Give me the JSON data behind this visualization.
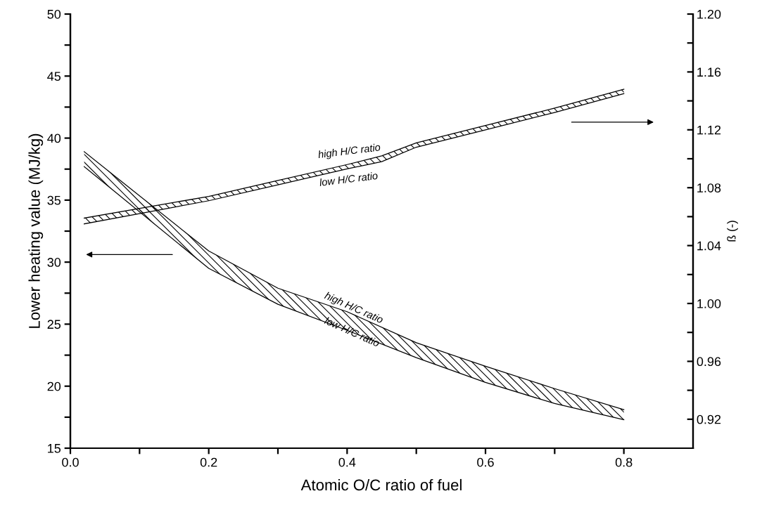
{
  "chart_data": {
    "type": "line",
    "xlabel": "Atomic O/C ratio of fuel",
    "ylabel": "Lower heating value (MJ/kg)",
    "y2label": "ß (-)",
    "xlim": [
      0,
      0.9
    ],
    "xticks": [
      {
        "value": 0,
        "label": "0.0"
      },
      {
        "value": 0.1,
        "label": null
      },
      0.2,
      {
        "value": 0.3,
        "label": null
      },
      0.4,
      {
        "value": 0.5,
        "label": null
      },
      0.6,
      {
        "value": 0.7,
        "label": null
      },
      0.8
    ],
    "ylim": [
      15,
      50
    ],
    "yticks": [
      15,
      {
        "value": 17.5,
        "label": null
      },
      20,
      {
        "value": 22.5,
        "label": null
      },
      25,
      {
        "value": 27.5,
        "label": null
      },
      30,
      {
        "value": 32.5,
        "label": null
      },
      35,
      {
        "value": 37.5,
        "label": null
      },
      40,
      {
        "value": 42.5,
        "label": null
      },
      45,
      {
        "value": 47.5,
        "label": null
      },
      50
    ],
    "y2lim": [
      0.9,
      1.2
    ],
    "y2ticks": [
      0.92,
      {
        "value": 0.94,
        "label": null
      },
      0.96,
      {
        "value": 0.98,
        "label": null
      },
      {
        "value": 1.0,
        "label": "1.00"
      },
      {
        "value": 1.02,
        "label": null
      },
      1.04,
      {
        "value": 1.06,
        "label": null
      },
      1.08,
      {
        "value": 1.1,
        "label": null
      },
      1.12,
      {
        "value": 1.14,
        "label": null
      },
      1.16,
      {
        "value": 1.18,
        "label": null
      },
      {
        "value": 1.2,
        "label": "1.20"
      }
    ],
    "series": [
      {
        "color": "#000000",
        "x": [
          0.02,
          0.2,
          0.3,
          0.4,
          0.5,
          0.6,
          0.7,
          0.8
        ],
        "values": [
          38.9,
          30.9,
          27.9,
          26.0,
          23.5,
          21.6,
          19.8,
          18.1
        ],
        "upper": [
          38.9,
          30.9,
          27.9,
          26.0,
          23.5,
          21.6,
          19.8,
          18.1
        ],
        "lower": [
          37.7,
          29.5,
          26.6,
          24.5,
          22.3,
          20.3,
          18.6,
          17.3
        ]
      },
      {
        "color": "#000000",
        "x": [
          0.02,
          0.2,
          0.3,
          0.4,
          0.5,
          0.6,
          0.7,
          0.8
        ],
        "values": [
          37.7,
          29.5,
          26.6,
          24.5,
          22.3,
          20.3,
          18.6,
          17.3
        ]
      },
      {
        "axis": "y2",
        "color": "#000000",
        "x": [
          0.02,
          0.2,
          0.3,
          0.4,
          0.45,
          0.5,
          0.6,
          0.7,
          0.8
        ],
        "values": [
          1.059,
          1.074,
          1.085,
          1.096,
          1.102,
          1.111,
          1.123,
          1.135,
          1.148
        ],
        "upper": [
          1.059,
          1.074,
          1.085,
          1.096,
          1.102,
          1.111,
          1.123,
          1.135,
          1.148
        ],
        "lower": [
          1.055,
          1.071,
          1.082,
          1.093,
          1.098,
          1.108,
          1.12,
          1.132,
          1.145
        ]
      },
      {
        "axis": "y2",
        "color": "#000000",
        "x": [
          0.02,
          0.2,
          0.3,
          0.4,
          0.45,
          0.5,
          0.6,
          0.7,
          0.8
        ],
        "values": [
          1.055,
          1.071,
          1.082,
          1.093,
          1.098,
          1.108,
          1.12,
          1.132,
          1.145
        ]
      }
    ],
    "annotations": [
      "high H/C ratio",
      "low H/C ratio",
      "high H/C ratio",
      "low H/C ratio"
    ],
    "grid": false,
    "legend": false
  }
}
